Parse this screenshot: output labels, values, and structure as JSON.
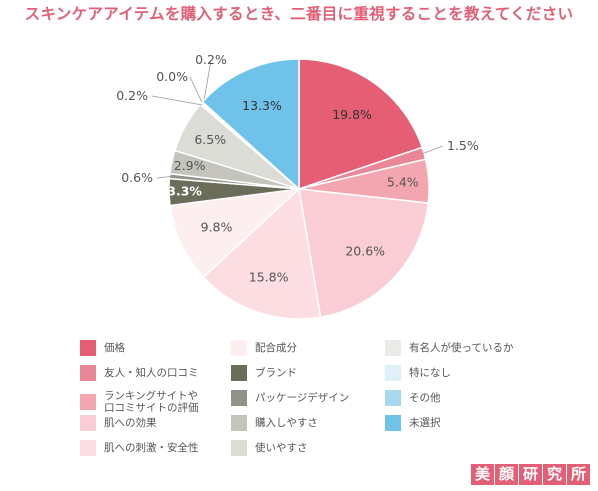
{
  "title": "スキンケアアイテムを購入するとき、二番目に重視することを教えてください",
  "chart_data": {
    "type": "pie",
    "start": "top",
    "direction": "clockwise",
    "slices": [
      {
        "name": "価格",
        "value": 19.8,
        "label": "19.8%",
        "color": "#e55e73"
      },
      {
        "name": "友人・知人の口コミ",
        "value": 1.5,
        "label": "1.5%",
        "color": "#ea8796"
      },
      {
        "name": "ランキングサイトや\n口コミサイトの評価",
        "value": 5.4,
        "label": "5.4%",
        "color": "#f4a6b0"
      },
      {
        "name": "肌への効果",
        "value": 20.6,
        "label": "20.6%",
        "color": "#f9cdd3"
      },
      {
        "name": "肌への刺激・安全性",
        "value": 15.8,
        "label": "15.8%",
        "color": "#fcdde1"
      },
      {
        "name": "配合成分",
        "value": 9.8,
        "label": "9.8%",
        "color": "#fdeeef"
      },
      {
        "name": "ブランド",
        "value": 3.3,
        "label": "3.3%",
        "color": "#6c6c5a"
      },
      {
        "name": "パッケージデザイン",
        "value": 0.6,
        "label": "0.6%",
        "color": "#92928a"
      },
      {
        "name": "購入しやすさ",
        "value": 2.9,
        "label": "2.9%",
        "color": "#c4c4bc"
      },
      {
        "name": "使いやすさ",
        "value": 6.5,
        "label": "6.5%",
        "color": "#dcdcd6"
      },
      {
        "name": "有名人が使っているか",
        "value": 0.2,
        "label": "0.2%",
        "color": "#ebebe8"
      },
      {
        "name": "特になし",
        "value": 0.0,
        "label": "0.0%",
        "color": "#dff0fa"
      },
      {
        "name": "その他",
        "value": 0.2,
        "label": "0.2%",
        "color": "#a8d8f0"
      },
      {
        "name": "未選択",
        "value": 13.3,
        "label": "13.3%",
        "color": "#6fc3ea"
      }
    ],
    "legend_columns": [
      [
        "価格",
        "友人・知人の口コミ",
        "ランキングサイトや\n口コミサイトの評価",
        "肌への効果",
        "肌への刺激・安全性"
      ],
      [
        "配合成分",
        "ブランド",
        "パッケージデザイン",
        "購入しやすさ",
        "使いやすさ"
      ],
      [
        "有名人が使っているか",
        "特になし",
        "その他",
        "未選択"
      ]
    ]
  },
  "logo": [
    "美",
    "顔",
    "研",
    "究",
    "所"
  ]
}
